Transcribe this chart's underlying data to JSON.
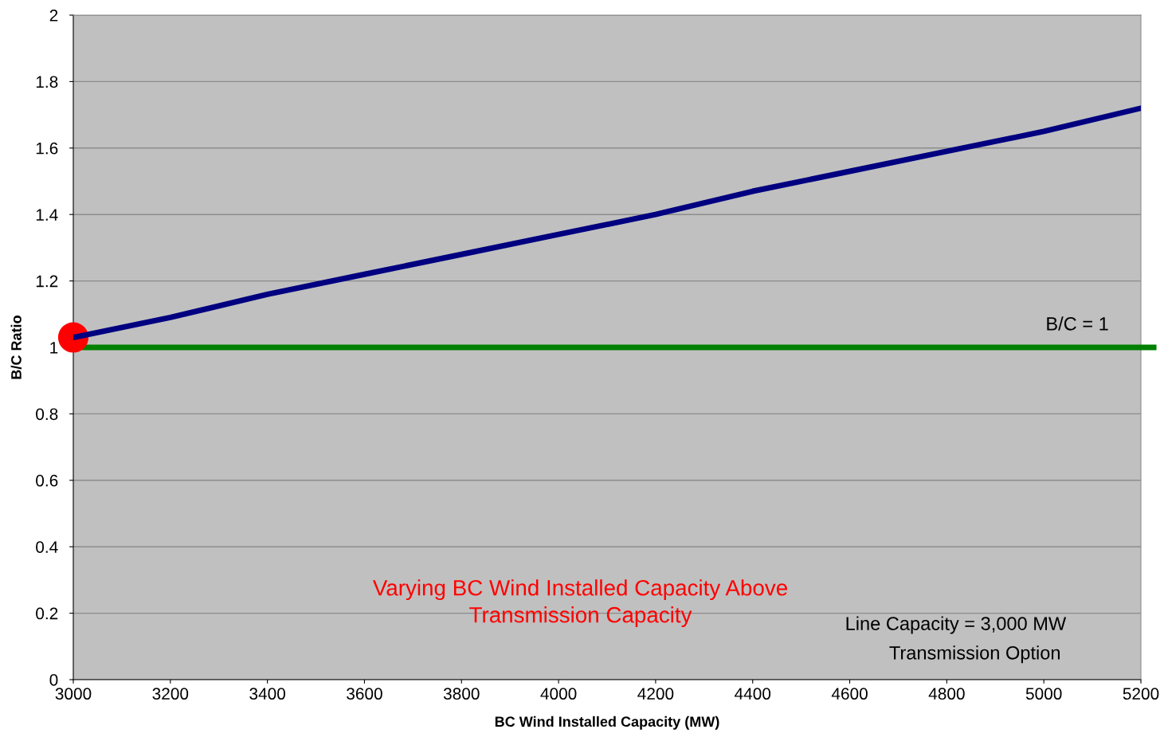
{
  "chart_data": {
    "type": "line",
    "xlabel": "BC Wind Installed Capacity (MW)",
    "ylabel": "B/C Ratio",
    "x": [
      3000,
      3200,
      3400,
      3600,
      3800,
      4000,
      4200,
      4400,
      4600,
      4800,
      5000,
      5200
    ],
    "series": [
      {
        "color": "#000080",
        "values": [
          1.03,
          1.09,
          1.16,
          1.22,
          1.28,
          1.34,
          1.4,
          1.47,
          1.53,
          1.59,
          1.65,
          1.72
        ]
      },
      {
        "type": "scatter",
        "color": "#ff0000",
        "x": [
          3000
        ],
        "values": [
          1.03
        ],
        "marker": "circle"
      }
    ],
    "xlim": [
      3000,
      5200
    ],
    "xticks": [
      3000,
      3200,
      3400,
      3600,
      3800,
      4000,
      4200,
      4400,
      4600,
      4800,
      5000,
      5200
    ],
    "ylim": [
      0,
      2
    ],
    "yticks": [
      0,
      0.2,
      0.4,
      0.6,
      0.8,
      1,
      1.2,
      1.4,
      1.6,
      1.8,
      2
    ],
    "grid": "y",
    "ref_lines": [
      {
        "axis": "y",
        "value": 1,
        "label": "B/C = 1",
        "color": "#008000"
      }
    ],
    "annotations": [
      "Varying BC Wind Installed Capacity Above\nTransmission Capacity",
      "Line Capacity = 3,000 MW",
      "Transmission Option"
    ]
  }
}
